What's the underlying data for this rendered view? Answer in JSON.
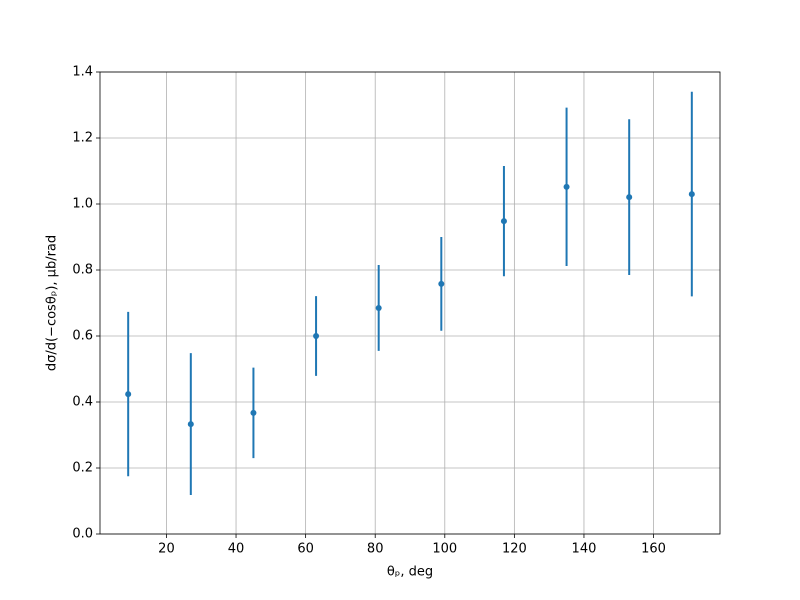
{
  "chart_data": {
    "type": "errorbar",
    "xlabel": "θₚ, deg",
    "ylabel": "dσ/d(−cosθₚ), μb/rad",
    "x": [
      9,
      27,
      45,
      63,
      81,
      99,
      117,
      135,
      153,
      171
    ],
    "values": [
      0.424,
      0.333,
      0.367,
      0.6,
      0.685,
      0.758,
      0.948,
      1.052,
      1.021,
      1.03
    ],
    "errors": [
      0.249,
      0.215,
      0.137,
      0.121,
      0.13,
      0.142,
      0.167,
      0.24,
      0.236,
      0.31
    ],
    "color": "#1f77b4",
    "xlim": [
      0.9,
      179.1
    ],
    "xticks": [
      20,
      40,
      60,
      80,
      100,
      120,
      140,
      160
    ],
    "ylim": [
      0,
      1.4
    ],
    "yticks": [
      0.0,
      0.2,
      0.4,
      0.6,
      0.8,
      1.0,
      1.2,
      1.4
    ],
    "grid": true
  }
}
